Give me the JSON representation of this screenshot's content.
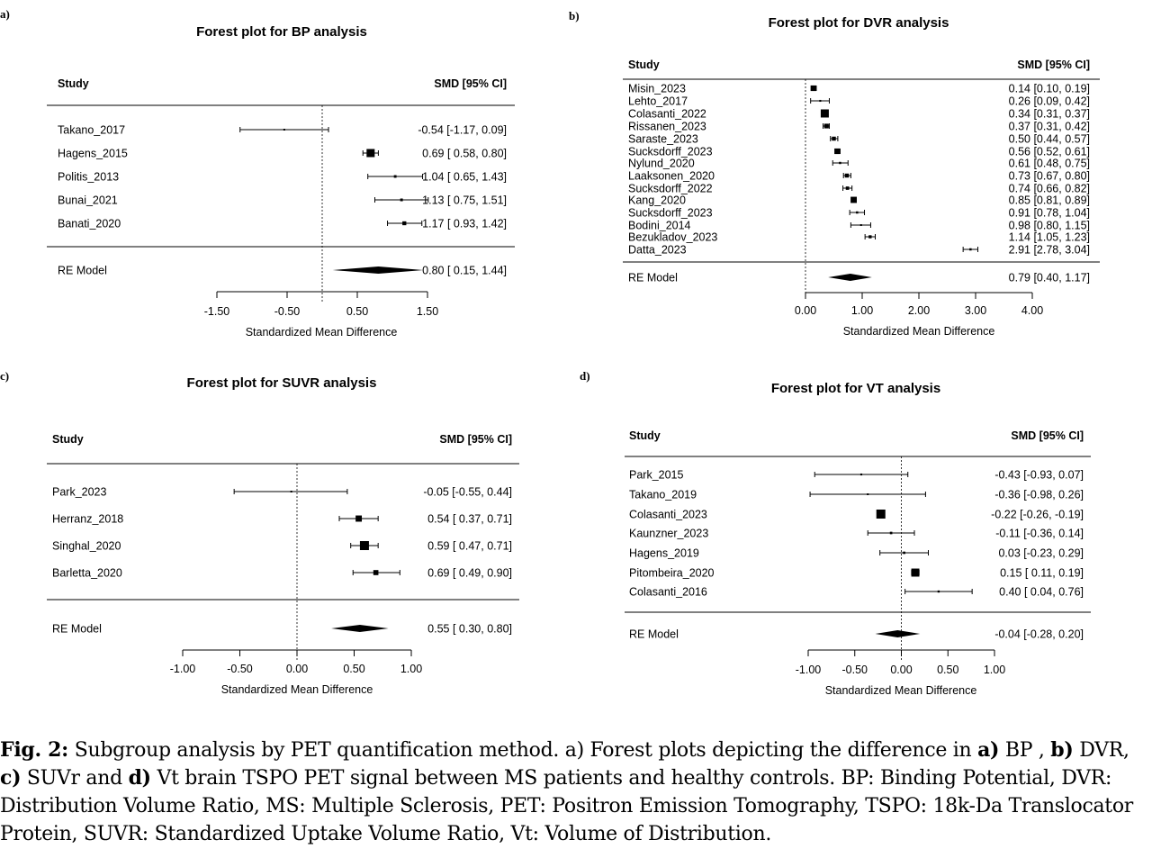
{
  "chart_data": [
    {
      "type": "forest",
      "panel": "a)",
      "title": "Forest plot for BP analysis",
      "header_study": "Study",
      "header_ci": "SMD [95% CI]",
      "xlabel": "Standardized Mean Difference",
      "xlim": [
        -1.5,
        1.5
      ],
      "ticks": [
        "-1.50",
        "-0.50",
        "0.50",
        "1.50"
      ],
      "studies": [
        {
          "name": "Takano_2017",
          "smd": -0.54,
          "lo": -1.17,
          "hi": 0.09,
          "ci": "-0.54 [-1.17, 0.09]"
        },
        {
          "name": "Hagens_2015",
          "smd": 0.69,
          "lo": 0.58,
          "hi": 0.8,
          "ci": "0.69 [ 0.58, 0.80]"
        },
        {
          "name": "Politis_2013",
          "smd": 1.04,
          "lo": 0.65,
          "hi": 1.43,
          "ci": "1.04 [ 0.65, 1.43]"
        },
        {
          "name": "Bunai_2021",
          "smd": 1.13,
          "lo": 0.75,
          "hi": 1.51,
          "ci": "1.13 [ 0.75, 1.51]"
        },
        {
          "name": "Banati_2020",
          "smd": 1.17,
          "lo": 0.93,
          "hi": 1.42,
          "ci": "1.17 [ 0.93, 1.42]"
        }
      ],
      "model": {
        "name": "RE Model",
        "smd": 0.8,
        "lo": 0.15,
        "hi": 1.44,
        "ci": "0.80 [ 0.15, 1.44]"
      }
    },
    {
      "type": "forest",
      "panel": "b)",
      "title": "Forest plot for DVR analysis",
      "header_study": "Study",
      "header_ci": "SMD [95% CI]",
      "xlabel": "Standardized Mean Difference",
      "xlim": [
        0,
        4
      ],
      "ticks": [
        "0.00",
        "1.00",
        "2.00",
        "3.00",
        "4.00"
      ],
      "studies": [
        {
          "name": "Misin_2023",
          "smd": 0.14,
          "lo": 0.1,
          "hi": 0.19,
          "ci": "0.14 [0.10, 0.19]"
        },
        {
          "name": "Lehto_2017",
          "smd": 0.26,
          "lo": 0.09,
          "hi": 0.42,
          "ci": "0.26 [0.09, 0.42]"
        },
        {
          "name": "Colasanti_2022",
          "smd": 0.34,
          "lo": 0.31,
          "hi": 0.37,
          "ci": "0.34 [0.31, 0.37]"
        },
        {
          "name": "Rissanen_2023",
          "smd": 0.37,
          "lo": 0.31,
          "hi": 0.42,
          "ci": "0.37 [0.31, 0.42]"
        },
        {
          "name": "Saraste_2023",
          "smd": 0.5,
          "lo": 0.44,
          "hi": 0.57,
          "ci": "0.50 [0.44, 0.57]"
        },
        {
          "name": "Sucksdorff_2023",
          "smd": 0.56,
          "lo": 0.52,
          "hi": 0.61,
          "ci": "0.56 [0.52, 0.61]"
        },
        {
          "name": "Nylund_2020",
          "smd": 0.61,
          "lo": 0.48,
          "hi": 0.75,
          "ci": "0.61 [0.48, 0.75]"
        },
        {
          "name": "Laaksonen_2020",
          "smd": 0.73,
          "lo": 0.67,
          "hi": 0.8,
          "ci": "0.73 [0.67, 0.80]"
        },
        {
          "name": "Sucksdorff_2022",
          "smd": 0.74,
          "lo": 0.66,
          "hi": 0.82,
          "ci": "0.74 [0.66, 0.82]"
        },
        {
          "name": "Kang_2020",
          "smd": 0.85,
          "lo": 0.81,
          "hi": 0.89,
          "ci": "0.85 [0.81, 0.89]"
        },
        {
          "name": "Sucksdorff_2023",
          "smd": 0.91,
          "lo": 0.78,
          "hi": 1.04,
          "ci": "0.91 [0.78, 1.04]"
        },
        {
          "name": "Bodini_2014",
          "smd": 0.98,
          "lo": 0.8,
          "hi": 1.15,
          "ci": "0.98 [0.80, 1.15]"
        },
        {
          "name": "Bezukladov_2023",
          "smd": 1.14,
          "lo": 1.05,
          "hi": 1.23,
          "ci": "1.14 [1.05, 1.23]"
        },
        {
          "name": "Datta_2023",
          "smd": 2.91,
          "lo": 2.78,
          "hi": 3.04,
          "ci": "2.91 [2.78, 3.04]"
        }
      ],
      "model": {
        "name": "RE Model",
        "smd": 0.79,
        "lo": 0.4,
        "hi": 1.17,
        "ci": "0.79 [0.40, 1.17]"
      }
    },
    {
      "type": "forest",
      "panel": "c)",
      "title": "Forest plot for SUVR analysis",
      "header_study": "Study",
      "header_ci": "SMD [95% CI]",
      "xlabel": "Standardized Mean Difference",
      "xlim": [
        -1,
        1
      ],
      "ticks": [
        "-1.00",
        "-0.50",
        "0.00",
        "0.50",
        "1.00"
      ],
      "studies": [
        {
          "name": "Park_2023",
          "smd": -0.05,
          "lo": -0.55,
          "hi": 0.44,
          "ci": "-0.05 [-0.55, 0.44]"
        },
        {
          "name": "Herranz_2018",
          "smd": 0.54,
          "lo": 0.37,
          "hi": 0.71,
          "ci": "0.54 [ 0.37, 0.71]"
        },
        {
          "name": "Singhal_2020",
          "smd": 0.59,
          "lo": 0.47,
          "hi": 0.71,
          "ci": "0.59 [ 0.47, 0.71]"
        },
        {
          "name": "Barletta_2020",
          "smd": 0.69,
          "lo": 0.49,
          "hi": 0.9,
          "ci": "0.69 [ 0.49, 0.90]"
        }
      ],
      "model": {
        "name": "RE Model",
        "smd": 0.55,
        "lo": 0.3,
        "hi": 0.8,
        "ci": "0.55 [ 0.30, 0.80]"
      }
    },
    {
      "type": "forest",
      "panel": "d)",
      "title": "Forest plot for VT analysis",
      "header_study": "Study",
      "header_ci": "SMD [95% CI]",
      "xlabel": "Standardized Mean Difference",
      "xlim": [
        -1,
        1
      ],
      "ticks": [
        "-1.00",
        "-0.50",
        "0.00",
        "0.50",
        "1.00"
      ],
      "studies": [
        {
          "name": "Park_2015",
          "smd": -0.43,
          "lo": -0.93,
          "hi": 0.07,
          "ci": "-0.43 [-0.93, 0.07]"
        },
        {
          "name": "Takano_2019",
          "smd": -0.36,
          "lo": -0.98,
          "hi": 0.26,
          "ci": "-0.36 [-0.98, 0.26]"
        },
        {
          "name": "Colasanti_2023",
          "smd": -0.22,
          "lo": -0.26,
          "hi": -0.19,
          "ci": "-0.22 [-0.26, -0.19]"
        },
        {
          "name": "Kaunzner_2023",
          "smd": -0.11,
          "lo": -0.36,
          "hi": 0.14,
          "ci": "-0.11 [-0.36, 0.14]"
        },
        {
          "name": "Hagens_2019",
          "smd": 0.03,
          "lo": -0.23,
          "hi": 0.29,
          "ci": "0.03 [-0.23, 0.29]"
        },
        {
          "name": "Pitombeira_2020",
          "smd": 0.15,
          "lo": 0.11,
          "hi": 0.19,
          "ci": "0.15 [ 0.11, 0.19]"
        },
        {
          "name": "Colasanti_2016",
          "smd": 0.4,
          "lo": 0.04,
          "hi": 0.76,
          "ci": "0.40 [ 0.04, 0.76]"
        }
      ],
      "model": {
        "name": "RE Model",
        "smd": -0.04,
        "lo": -0.28,
        "hi": 0.2,
        "ci": "-0.04 [-0.28, 0.20]"
      }
    }
  ],
  "caption": {
    "fig_label": "Fig. 2:",
    "text1": " Subgroup analysis by PET quantification method. a) Forest plots depicting the difference in ",
    "bold_a": "a)",
    "text2": " BP , ",
    "bold_b": "b)",
    "text3": " DVR, ",
    "bold_c": "c)",
    "text4": " SUVr and ",
    "bold_d": "d)",
    "text5": " Vt brain TSPO PET signal between MS patients and healthy controls. BP: Binding Potential, DVR: Distribution Volume Ratio, MS: Multiple Sclerosis, PET: Positron Emission Tomography, TSPO: 18k-Da Translocator Protein, SUVR: Standardized Uptake Volume Ratio, Vt: Volume of Distribution."
  }
}
